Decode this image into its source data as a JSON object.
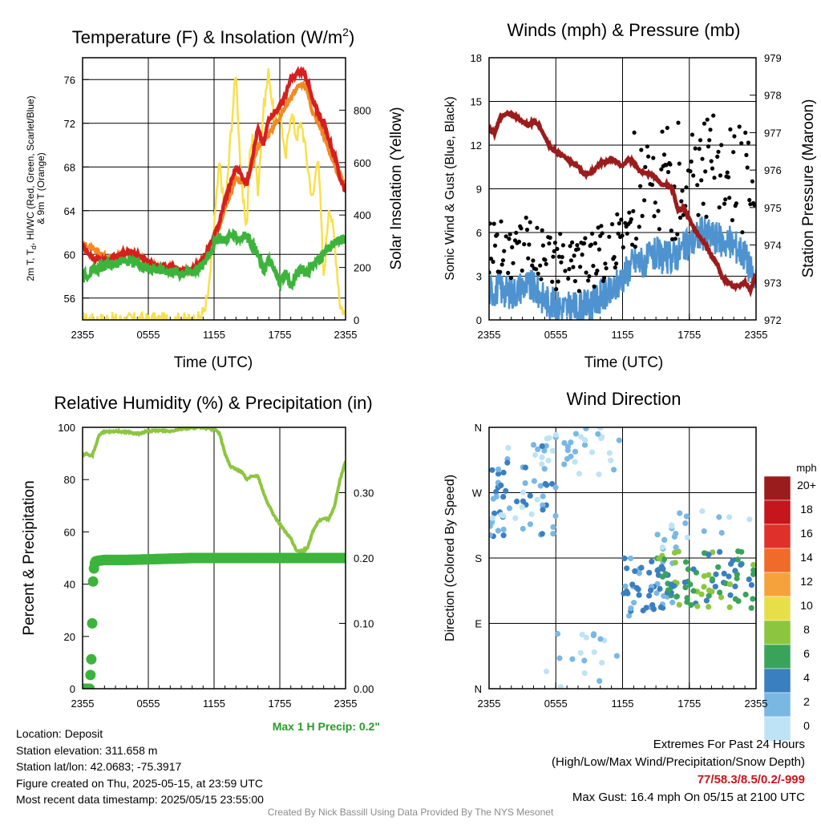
{
  "colors": {
    "t2m": "#d42020",
    "td": "#3cb43c",
    "hi_wc": "#d42020",
    "t9m": "#f08a24",
    "solar": "#f8e04a",
    "wind": "#4e93d0",
    "gust": "#000000",
    "pressure": "#9b1c1c",
    "rh": "#8cc63f",
    "precip": "#3cb43c",
    "precip_label": "#2a9a2a",
    "extremes": "#c8161d",
    "credit": "#8a8a8a"
  },
  "charts": {
    "temperature": {
      "title_prefix": "Temperature (F) & Insolation (W/m",
      "title_sup": "2",
      "title_suffix": ")",
      "ylabel_left_line1": "2m T, T",
      "ylabel_left_sub": "d",
      "ylabel_left_rest": ", HI/WC (Red, Green, Scarlet/Blue)",
      "ylabel_left_line2": "& 9m T (Orange)",
      "ylabel_right": "Solar Insolation (Yellow)",
      "xlabel": "Time (UTC)",
      "xticks": [
        "2355",
        "0555",
        "1155",
        "1755",
        "2355"
      ],
      "yticks_left": [
        "56",
        "60",
        "64",
        "68",
        "72",
        "76"
      ],
      "yticks_right": [
        "0",
        "200",
        "400",
        "600",
        "800"
      ]
    },
    "winds": {
      "title": "Winds (mph) & Pressure (mb)",
      "ylabel_left": "Sonic Wind & Gust (Blue, Black)",
      "ylabel_right": "Station Pressure (Maroon)",
      "xlabel": "Time (UTC)",
      "xticks": [
        "2355",
        "0555",
        "1155",
        "1755",
        "2355"
      ],
      "yticks_left": [
        "0",
        "3",
        "6",
        "9",
        "12",
        "15",
        "18"
      ],
      "yticks_right": [
        "972",
        "973",
        "974",
        "975",
        "976",
        "977",
        "978",
        "979"
      ]
    },
    "humidity": {
      "title": "Relative Humidity (%) & Precipitation (in)",
      "ylabel_left": "Percent & Precipitation",
      "xticks": [
        "2355",
        "0555",
        "1155",
        "1755",
        "2355"
      ],
      "yticks_left": [
        "0",
        "20",
        "40",
        "60",
        "80",
        "100"
      ],
      "yticks_right": [
        "0.00",
        "0.10",
        "0.20",
        "0.30"
      ],
      "precip_note": "Max 1 H Precip: 0.2\""
    },
    "direction": {
      "title": "Wind Direction",
      "ylabel_left": "Direction (Colored By Speed)",
      "xticks": [
        "2355",
        "0555",
        "1155",
        "1755",
        "2355"
      ],
      "yticks_left": [
        "N",
        "E",
        "S",
        "W",
        "N"
      ],
      "legend_title": "mph",
      "legend_labels": [
        "20+",
        "18",
        "16",
        "14",
        "12",
        "10",
        "8",
        "6",
        "4",
        "2",
        "0"
      ],
      "legend_colors": [
        "#9b1c1c",
        "#c4161c",
        "#e0302a",
        "#f06a2a",
        "#f6a23c",
        "#e8de4a",
        "#8cc63f",
        "#3aa35a",
        "#3a7fc0",
        "#7ab8e4",
        "#bfe3f6"
      ]
    }
  },
  "info": {
    "location": "Location: Deposit",
    "elevation": "Station elevation: 311.658 m",
    "latlon": "Station lat/lon: 42.0683; -75.3917",
    "created": "Figure created on Thu, 2025-05-15, at 23:59 UTC",
    "recent": "Most recent data timestamp: 2025/05/15 23:55:00"
  },
  "extremes": {
    "title": "Extremes For Past 24 Hours",
    "subtitle": "(High/Low/Max Wind/Precipitation/Snow Depth)",
    "values": "77/58.3/8.5/0.2/-999",
    "gust": "Max Gust: 16.4 mph On 05/15 at 2100 UTC"
  },
  "credit": "Created By Nick Bassill Using Data Provided By The NYS Mesonet",
  "chart_data": [
    {
      "type": "line",
      "x_unit": "hours since 2355 UTC",
      "xlim": [
        0,
        24
      ],
      "ylim": [
        54,
        78
      ],
      "y2lim": [
        0,
        1000
      ],
      "series": [
        {
          "axis": "left",
          "x": [
            0,
            0.5,
            1,
            2,
            3,
            4,
            5,
            5.5,
            6,
            7,
            8,
            9,
            10,
            10.5,
            11,
            11.5,
            12,
            12.5,
            13,
            13.5,
            14,
            15,
            15.5,
            16,
            16.5,
            17,
            18,
            18.5,
            19,
            19.5,
            20,
            20.5,
            21,
            21.5,
            22,
            22.5,
            23,
            23.5,
            24
          ],
          "y": [
            60.8,
            60.2,
            59.6,
            59.4,
            59.8,
            60.2,
            60,
            59.6,
            59.2,
            58.9,
            58.7,
            58.5,
            58.6,
            59,
            59.6,
            60.6,
            61.6,
            63,
            65,
            66.5,
            68,
            66.5,
            69,
            71.5,
            70,
            72.5,
            73.5,
            74.5,
            76,
            76.5,
            76.8,
            76,
            74,
            73,
            72,
            70.5,
            69,
            67,
            65.8
          ]
        },
        {
          "axis": "left",
          "x": [
            0,
            1,
            2,
            3,
            4,
            5,
            6,
            7,
            8,
            9,
            10,
            11,
            11.5,
            12,
            12.5,
            13,
            13.5,
            14,
            15,
            16,
            16.5,
            17,
            18,
            18.5,
            19,
            19.5,
            20,
            20.5,
            21,
            22,
            23,
            24
          ],
          "y": [
            58,
            58.5,
            59,
            59.2,
            59.4,
            59.1,
            58.8,
            58.6,
            58.5,
            58.3,
            58.4,
            59,
            60,
            61,
            61.5,
            61.3,
            61.8,
            61.5,
            61.7,
            60,
            58.5,
            59.5,
            57.5,
            58.2,
            57,
            58.2,
            58.6,
            58.3,
            59,
            60,
            61,
            61.5
          ]
        },
        {
          "axis": "left",
          "x": [
            0,
            1,
            2,
            3,
            4,
            5,
            6,
            7,
            8,
            9,
            10,
            11,
            11.5,
            12,
            12.5,
            13,
            13.5,
            14,
            15,
            16,
            17,
            18,
            19,
            19.5,
            20,
            20.5,
            21,
            22,
            23,
            24
          ],
          "y": [
            61,
            60.4,
            59.8,
            59.8,
            60.1,
            59.9,
            59.1,
            58.9,
            58.7,
            58.5,
            58.6,
            59.5,
            60.4,
            61.4,
            62.6,
            64.4,
            65.6,
            67,
            66.4,
            70,
            71,
            72.6,
            74.4,
            75.2,
            75.6,
            75,
            73,
            71,
            68,
            66.4
          ]
        },
        {
          "axis": "right",
          "x": [
            0,
            6,
            9,
            10.5,
            11,
            11.5,
            12,
            12.5,
            13,
            13.5,
            14,
            14.5,
            15,
            15.2,
            15.5,
            16,
            16.5,
            17,
            17.5,
            18,
            18.5,
            19,
            19.5,
            20,
            20.5,
            21,
            21.5,
            22,
            22.5,
            23,
            23.5,
            24
          ],
          "y": [
            0,
            0,
            0,
            0,
            30,
            100,
            360,
            600,
            400,
            700,
            950,
            500,
            350,
            600,
            700,
            500,
            800,
            950,
            750,
            820,
            600,
            800,
            700,
            750,
            600,
            450,
            650,
            150,
            450,
            300,
            60,
            20
          ]
        }
      ]
    },
    {
      "type": "line",
      "x_unit": "hours since 2355 UTC",
      "xlim": [
        0,
        24
      ],
      "ylim": [
        0,
        18
      ],
      "y2lim": [
        972,
        979
      ],
      "series": [
        {
          "axis": "left",
          "x": [
            0,
            1,
            2,
            3,
            4,
            5,
            6,
            7,
            8,
            9,
            10,
            11,
            12,
            13,
            14,
            15,
            16,
            17,
            18,
            19,
            20,
            21,
            22,
            23,
            24
          ],
          "y": [
            2,
            2.2,
            1.8,
            2.4,
            2.2,
            1.4,
            1,
            0.8,
            0.8,
            1,
            1.6,
            1.8,
            3,
            4,
            4,
            4.5,
            4.2,
            4.6,
            5.2,
            6,
            5.8,
            5.4,
            5.2,
            4.5,
            2.3
          ]
        },
        {
          "axis": "right",
          "x": [
            0,
            0.5,
            1,
            1.5,
            2,
            2.5,
            3,
            3.5,
            4,
            4.5,
            5,
            5.5,
            6,
            6.5,
            7,
            7.5,
            8,
            8.5,
            9,
            9.5,
            10,
            10.5,
            11,
            11.5,
            12,
            12.5,
            13,
            13.5,
            14,
            14.5,
            15,
            15.5,
            16,
            16.5,
            17,
            17.5,
            18,
            18.5,
            19,
            19.5,
            20,
            20.5,
            21,
            21.5,
            22,
            22.5,
            23,
            23.5,
            24
          ],
          "y": [
            977.1,
            977.0,
            977.4,
            977.5,
            977.5,
            977.4,
            977.3,
            977.2,
            977.3,
            977.2,
            976.9,
            976.6,
            976.5,
            976.4,
            976.3,
            976.2,
            976.1,
            975.9,
            975.9,
            976.0,
            976.2,
            976.2,
            976.3,
            976.2,
            976.1,
            976.3,
            976.2,
            976.0,
            975.9,
            975.9,
            975.8,
            975.6,
            975.6,
            975.5,
            974.9,
            975.0,
            974.7,
            974.4,
            974.2,
            974.0,
            973.7,
            973.5,
            973.1,
            973.0,
            972.9,
            972.9,
            973.0,
            972.8,
            973.2
          ]
        }
      ]
    },
    {
      "type": "line",
      "x_unit": "hours since 2355 UTC",
      "xlim": [
        0,
        24
      ],
      "ylim": [
        0,
        100
      ],
      "y2lim": [
        0,
        0.4
      ],
      "series": [
        {
          "axis": "left",
          "x": [
            0,
            0.3,
            0.6,
            0.9,
            1.2,
            1.5,
            1.8,
            2.1,
            2.4,
            3,
            4,
            5,
            6,
            7,
            8,
            9,
            10,
            11,
            11.5,
            12,
            12.5,
            13,
            13.5,
            14,
            14.5,
            15,
            15.5,
            16,
            16.5,
            17,
            17.5,
            18,
            18.5,
            19,
            19.5,
            20,
            20.5,
            21,
            21.5,
            22,
            22.5,
            23,
            23.5,
            24
          ],
          "y": [
            89,
            90,
            89,
            89.5,
            93,
            97,
            98,
            98.5,
            98.2,
            98.5,
            98.3,
            97.5,
            98.5,
            98.8,
            98.5,
            99.5,
            99.8,
            100,
            99.5,
            99.6,
            97.6,
            90,
            85,
            84,
            83,
            80,
            81.5,
            81.5,
            75,
            70,
            66,
            63,
            60,
            57.5,
            53,
            52.5,
            53.7,
            60,
            64,
            65,
            65,
            70,
            80,
            87
          ]
        },
        {
          "axis": "right",
          "x": [
            0,
            0.25,
            0.5,
            0.65,
            0.8,
            0.85,
            0.9,
            0.95,
            1,
            1.05,
            1.1,
            1.15,
            1.2,
            1.5,
            2,
            4,
            6,
            8,
            10,
            12,
            14,
            16,
            18,
            20,
            22,
            24
          ],
          "y": [
            0,
            0,
            0,
            0,
            0.045,
            0.07,
            0.12,
            0.16,
            0.18,
            0.185,
            0.19,
            0.195,
            0.195,
            0.196,
            0.197,
            0.197,
            0.198,
            0.199,
            0.2,
            0.2,
            0.2,
            0.2,
            0.2,
            0.2,
            0.2,
            0.2
          ]
        }
      ]
    },
    {
      "type": "scatter",
      "x_unit": "hours since 2355 UTC",
      "xlim": [
        0,
        24
      ],
      "ylim": [
        0,
        360
      ],
      "y_axis_labels": {
        "0": "N",
        "90": "E",
        "180": "S",
        "270": "W",
        "360": "N"
      },
      "color_scale": {
        "unit": "mph",
        "min": 0,
        "max": 20,
        "step": 2
      },
      "clusters": [
        {
          "x_range": [
            0,
            6
          ],
          "dir_range": [
            210,
            340
          ],
          "speed_range": [
            0,
            4
          ],
          "count": 70
        },
        {
          "x_range": [
            5,
            12
          ],
          "dir_range": [
            290,
            360
          ],
          "speed_range": [
            0,
            2
          ],
          "count": 30
        },
        {
          "x_range": [
            5,
            13
          ],
          "dir_range": [
            0,
            80
          ],
          "speed_range": [
            0,
            2
          ],
          "count": 18
        },
        {
          "x_range": [
            12,
            17
          ],
          "dir_range": [
            100,
            180
          ],
          "speed_range": [
            2,
            5
          ],
          "count": 50
        },
        {
          "x_range": [
            15,
            24
          ],
          "dir_range": [
            110,
            190
          ],
          "speed_range": [
            3,
            9
          ],
          "count": 90
        },
        {
          "x_range": [
            15,
            24
          ],
          "dir_range": [
            190,
            250
          ],
          "speed_range": [
            0,
            3
          ],
          "count": 20
        }
      ]
    }
  ]
}
